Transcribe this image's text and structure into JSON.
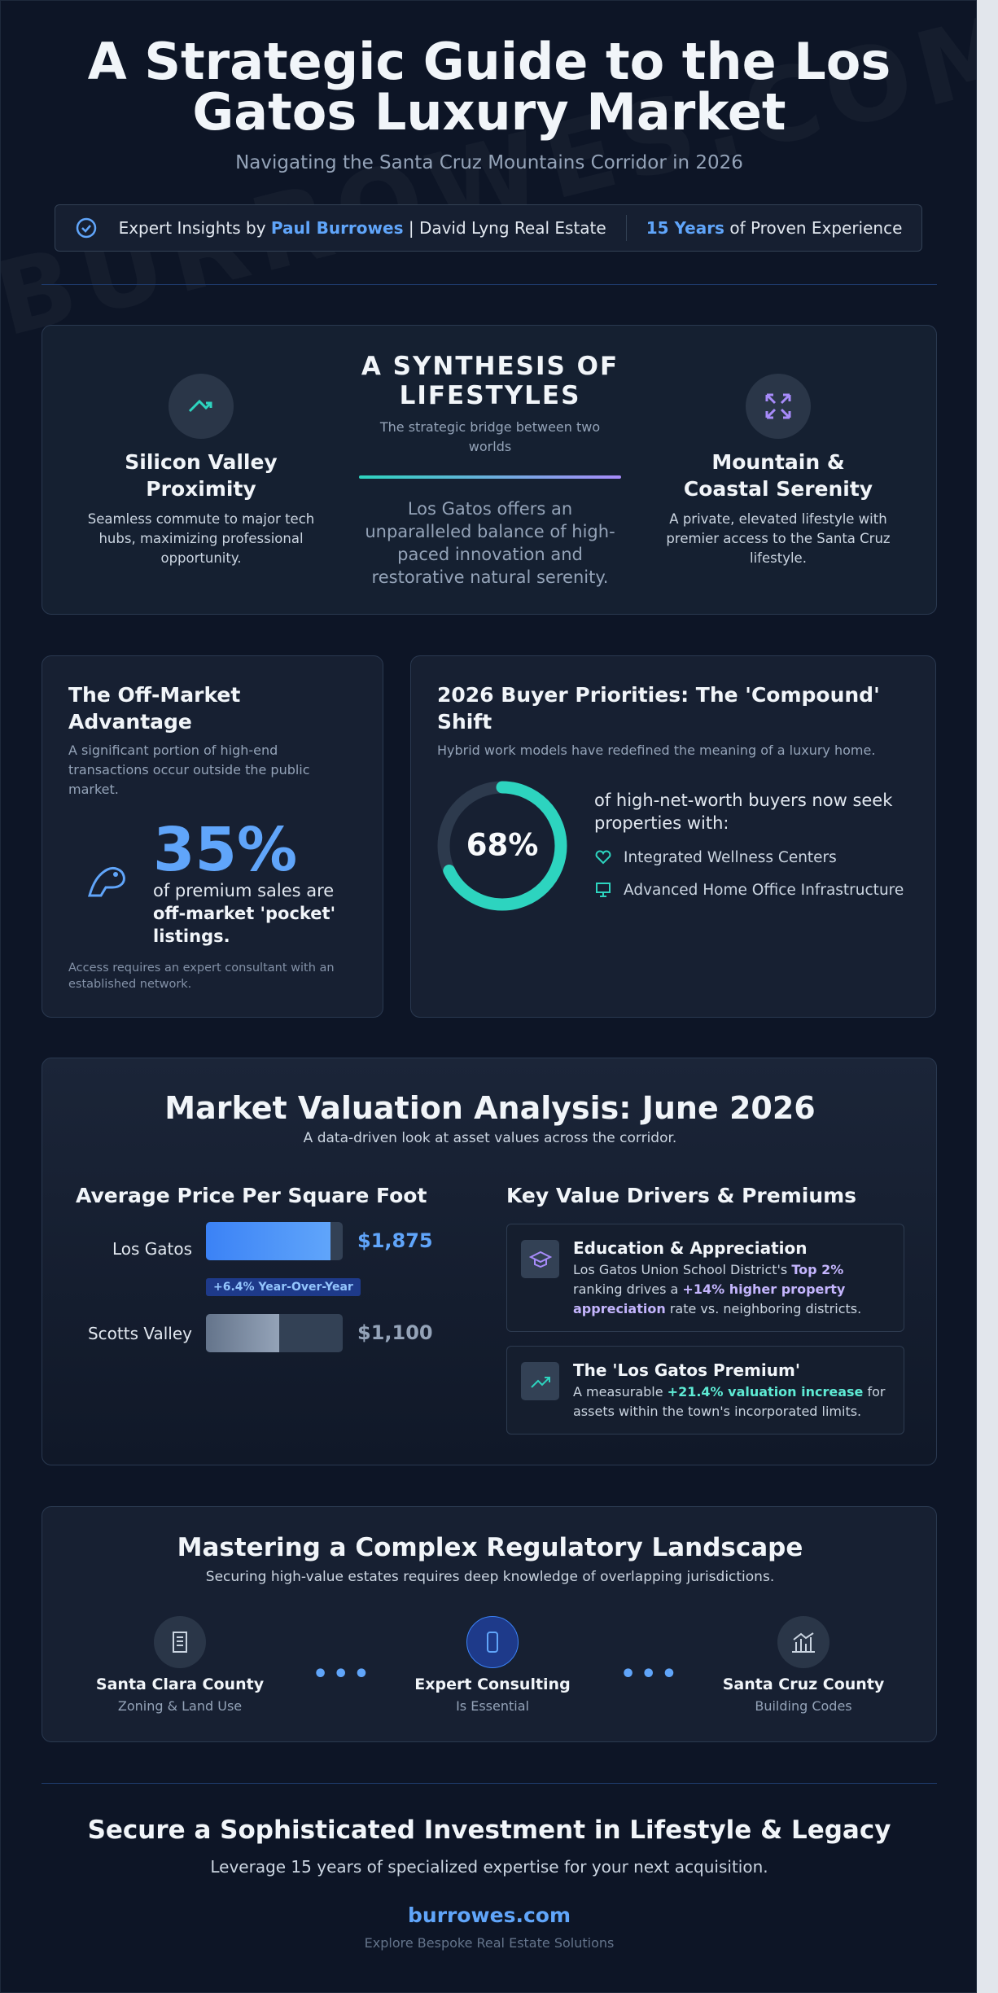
{
  "header": {
    "title": "A Strategic Guide to the Los Gatos Luxury Market",
    "subtitle": "Navigating the Santa Cruz Mountains Corridor in 2026",
    "credentials": {
      "prefix": "Expert Insights by",
      "name": "Paul Burrowes",
      "firm": "| David Lyng Real Estate",
      "years": "15 Years",
      "years_suffix": "of Proven Experience"
    }
  },
  "watermark": "BURROWES.COM",
  "synthesis": {
    "title": "A SYNTHESIS OF LIFESTYLES",
    "subtitle": "The strategic bridge between two worlds",
    "body": "Los Gatos offers an unparalleled balance of high-paced innovation and restorative natural serenity.",
    "left": {
      "title": "Silicon Valley Proximity",
      "text": "Seamless commute to major tech hubs, maximizing professional opportunity."
    },
    "right": {
      "title": "Mountain & Coastal Serenity",
      "text": "A private, elevated lifestyle with premier access to the Santa Cruz lifestyle."
    }
  },
  "off_market": {
    "title": "The Off-Market Advantage",
    "subtitle": "A significant portion of high-end transactions occur outside the public market.",
    "stat": "35%",
    "stat_text": "of premium sales are",
    "stat_strong": "off-market 'pocket' listings.",
    "note": "Access requires an expert consultant with an established network."
  },
  "priorities": {
    "title": "2026 Buyer Priorities: The 'Compound' Shift",
    "subtitle": "Hybrid work models have redefined the meaning of a luxury home.",
    "percent": {
      "value": 68,
      "label": "68%"
    },
    "lead": "of high-net-worth buyers now seek properties with:",
    "items": [
      "Integrated Wellness Centers",
      "Advanced Home Office Infrastructure"
    ]
  },
  "valuation": {
    "title": "Market Valuation Analysis: June 2026",
    "subtitle": "A data-driven look at asset values across the corridor.",
    "price_title": "Average Price Per Square Foot",
    "prices": [
      {
        "name": "Los Gatos",
        "value": {
          "value": 1875,
          "label": "$1,875"
        },
        "badge": "+6.4% Year-Over-Year"
      },
      {
        "name": "Scotts Valley",
        "value": {
          "value": 1100,
          "label": "$1,100"
        }
      }
    ],
    "drivers_title": "Key Value Drivers & Premiums",
    "drivers": [
      {
        "title": "Education & Appreciation",
        "text": [
          "Los Gatos Union School District's ",
          "Top 2%",
          " ranking drives a ",
          "+14% higher property appreciation",
          " rate vs. neighboring districts."
        ]
      },
      {
        "title": "The 'Los Gatos Premium'",
        "text": [
          "A measurable ",
          "+21.4% valuation increase",
          " for assets within the town's incorporated limits."
        ]
      }
    ]
  },
  "regulatory": {
    "title": "Mastering a Complex Regulatory Landscape",
    "subtitle": "Securing high-value estates requires deep knowledge of overlapping jurisdictions.",
    "steps": [
      {
        "title": "Santa Clara County",
        "sub": "Zoning & Land Use"
      },
      {
        "title": "Expert Consulting",
        "sub": "Is Essential"
      },
      {
        "title": "Santa Cruz County",
        "sub": "Building Codes"
      }
    ]
  },
  "footer": {
    "title": "Secure a Sophisticated Investment in Lifestyle & Legacy",
    "subtitle": "Leverage 15 years of specialized expertise for your next acquisition.",
    "link": "burrowes.com",
    "tagline": "Explore Bespoke Real Estate Solutions"
  }
}
